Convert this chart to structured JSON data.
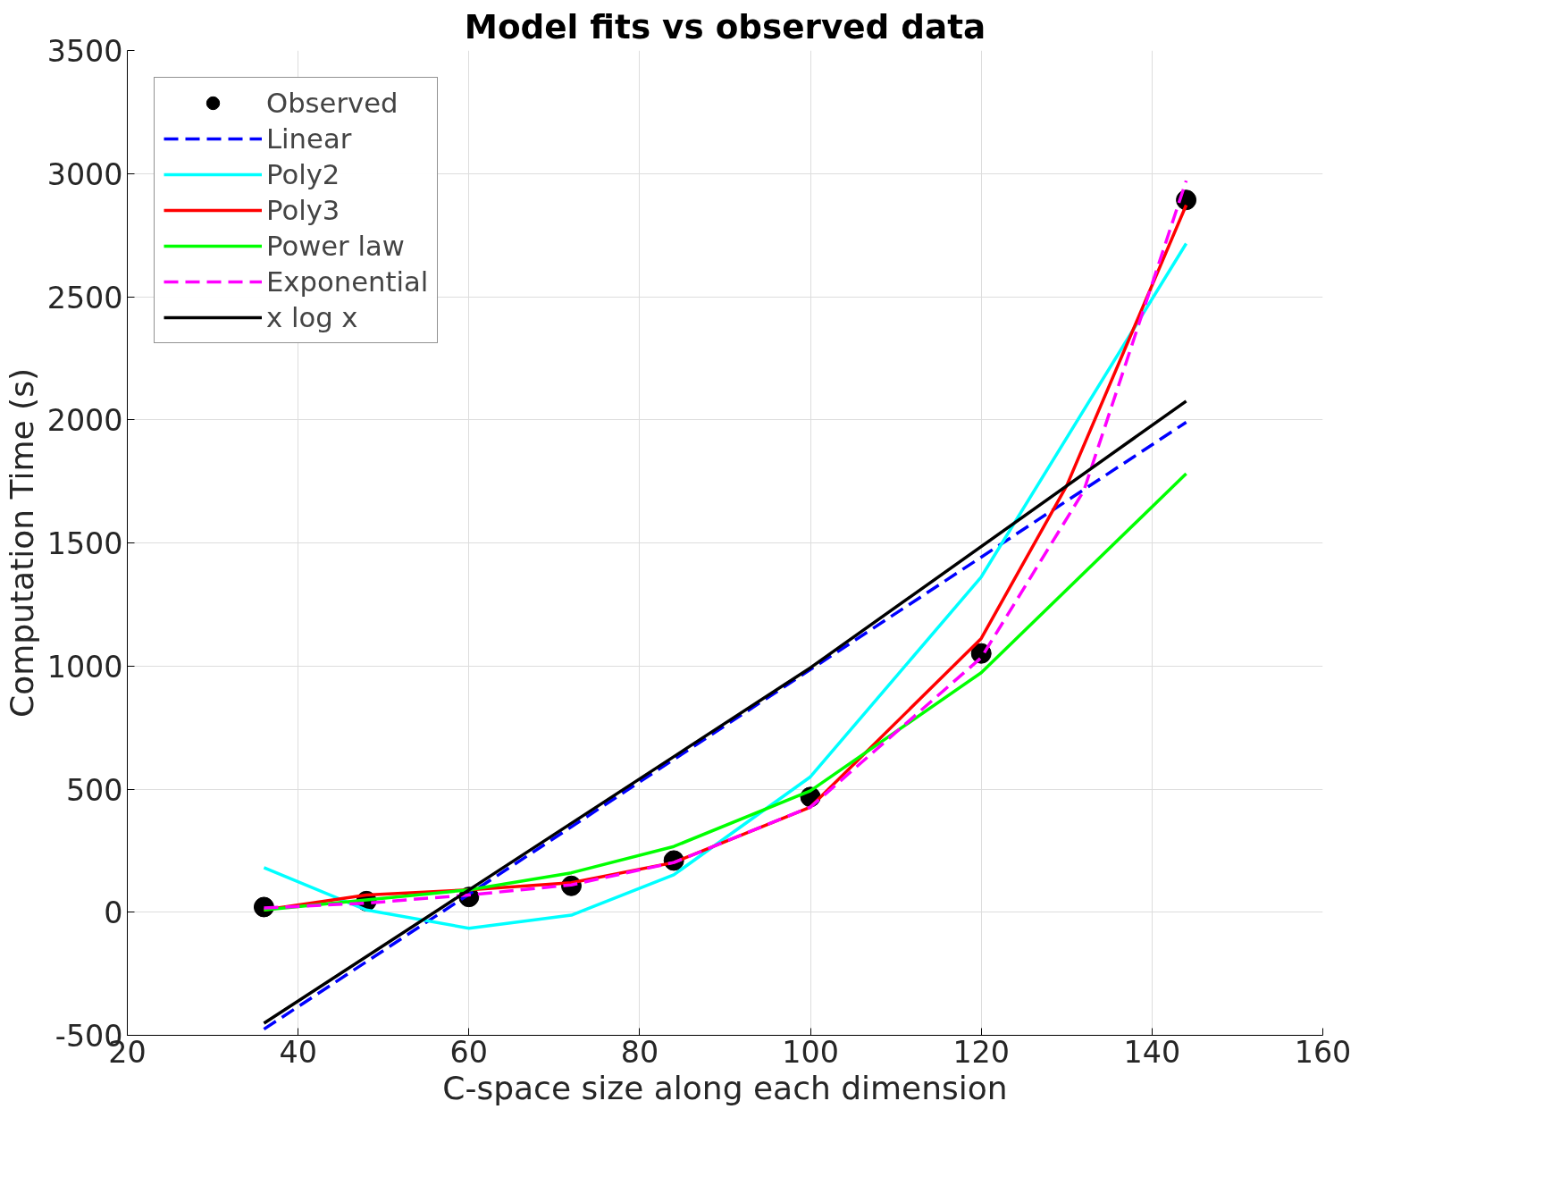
{
  "chart_data": {
    "type": "line",
    "title": "Model fits vs observed data",
    "xlabel": "C-space size along each dimension",
    "ylabel": "Computation Time (s)",
    "xlim": [
      20,
      160
    ],
    "xticks": [
      20,
      40,
      60,
      80,
      100,
      120,
      140,
      160
    ],
    "ylim": [
      -500,
      3500
    ],
    "yticks": [
      {
        "value": -500,
        "label": "-500"
      },
      0,
      500,
      1000,
      1500,
      2000,
      2500,
      3000,
      3500
    ],
    "grid": true,
    "legend": "top left",
    "series": [
      {
        "name": "Observed",
        "type": "scatter",
        "marker": "circle",
        "color": "#000000",
        "x": [
          36,
          48,
          60,
          72,
          84,
          100,
          120,
          144
        ],
        "values": [
          21,
          45,
          62,
          107,
          210,
          468,
          1051,
          2893
        ]
      },
      {
        "name": "Linear",
        "line_style": "dashed",
        "color": "#0000ff",
        "x": [
          36,
          144
        ],
        "values": [
          -475,
          1990
        ]
      },
      {
        "name": "Poly2",
        "line_style": "solid",
        "color": "#00ffff",
        "x": [
          36,
          48,
          60,
          72,
          84,
          100,
          120,
          144
        ],
        "values": [
          181,
          9,
          -65,
          -12,
          152,
          550,
          1362,
          2716
        ]
      },
      {
        "name": "Poly3",
        "line_style": "solid",
        "color": "#ff0000",
        "x": [
          36,
          48,
          60,
          72,
          84,
          100,
          120,
          130,
          144
        ],
        "values": [
          9,
          70,
          91,
          120,
          202,
          427,
          1112,
          1732,
          2872
        ]
      },
      {
        "name": "Power law",
        "line_style": "solid",
        "color": "#00ff00",
        "x": [
          36,
          48,
          60,
          72,
          84,
          100,
          120,
          144
        ],
        "values": [
          9,
          50,
          91,
          160,
          267,
          493,
          973,
          1781
        ]
      },
      {
        "name": "Exponential",
        "line_style": "dashed",
        "color": "#ff00ff",
        "x": [
          36,
          48,
          60,
          72,
          84,
          100,
          120,
          132,
          144
        ],
        "values": [
          17,
          37,
          70,
          111,
          202,
          427,
          1034,
          1711,
          2971
        ]
      },
      {
        "name": "x log x",
        "line_style": "solid",
        "color": "#000000",
        "x": [
          36,
          100,
          144
        ],
        "values": [
          -451,
          993,
          2076
        ]
      }
    ]
  }
}
